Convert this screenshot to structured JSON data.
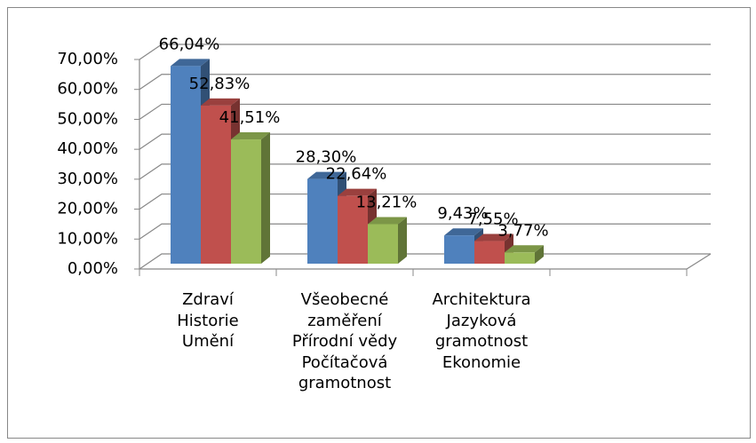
{
  "chart_data": {
    "type": "bar3d",
    "categories": [
      "Zdraví\nHistorie\nUmění",
      "Všeobecné\nzaměření\nPřírodní vědy\nPočítačová\ngramotnost",
      "Architektura\nJazyková\ngramotnost\nEkonomie",
      null
    ],
    "series": [
      {
        "color": "#4f81bd",
        "values": [
          66.04,
          28.3,
          9.43,
          null
        ],
        "value_labels": [
          "66,04%",
          "28,30%",
          "9,43%",
          null
        ]
      },
      {
        "color": "#c0504d",
        "values": [
          52.83,
          22.64,
          7.55,
          null
        ],
        "value_labels": [
          "52,83%",
          "22,64%",
          "7,55%",
          null
        ]
      },
      {
        "color": "#9bbb59",
        "values": [
          41.51,
          13.21,
          3.77,
          null
        ],
        "value_labels": [
          "41,51%",
          "13,21%",
          "3,77%",
          null
        ]
      }
    ],
    "ylim": [
      0,
      70
    ],
    "yticks": [
      {
        "value": 0,
        "label": "0,00%"
      },
      {
        "value": 10,
        "label": "10,00%"
      },
      {
        "value": 20,
        "label": "20,00%"
      },
      {
        "value": 30,
        "label": "30,00%"
      },
      {
        "value": 40,
        "label": "40,00%"
      },
      {
        "value": 50,
        "label": "50,00%"
      },
      {
        "value": 60,
        "label": "60,00%"
      },
      {
        "value": 70,
        "label": "70,00%"
      }
    ],
    "grid": true
  }
}
